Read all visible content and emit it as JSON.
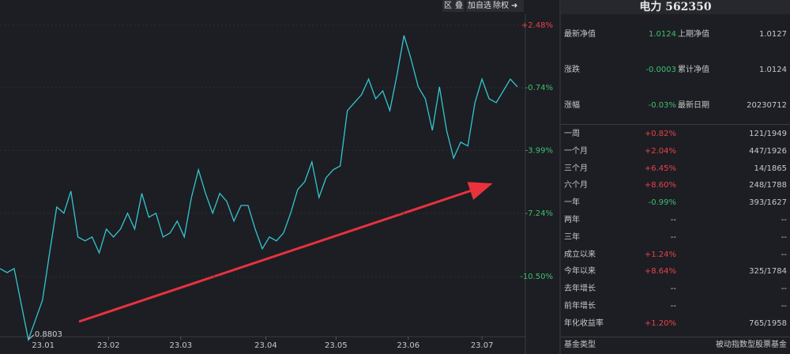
{
  "toolbar": [
    "区",
    "叠",
    "加自选",
    "除权"
  ],
  "chart_data": {
    "type": "line",
    "series": [
      {
        "color": "#35c6d0",
        "values": [
          -10.09,
          -10.3,
          -10.09,
          -11.93,
          -13.76,
          -12.74,
          -11.72,
          -9.28,
          -6.91,
          -7.23,
          -6.09,
          -8.46,
          -8.66,
          -8.46,
          -9.28,
          -8.05,
          -8.46,
          -8.05,
          -7.23,
          -8.05,
          -6.21,
          -7.44,
          -7.23,
          -8.46,
          -8.25,
          -7.64,
          -8.46,
          -6.42,
          -4.99,
          -6.21,
          -7.23,
          -6.21,
          -6.62,
          -7.64,
          -6.83,
          -6.83,
          -8.05,
          -9.07,
          -8.46,
          -8.66,
          -8.25,
          -7.23,
          -6.01,
          -5.6,
          -4.58,
          -6.42,
          -5.4,
          -4.99,
          -4.79,
          -1.93,
          -1.52,
          -1.11,
          -0.3,
          -1.32,
          -0.91,
          -1.93,
          -0.09,
          1.95,
          0.72,
          -0.7,
          -1.32,
          -2.95,
          -0.7,
          -2.95,
          -4.38,
          -3.56,
          -3.76,
          -1.52,
          -0.3,
          -1.32,
          -1.52,
          -0.91,
          -0.3,
          -0.7
        ]
      }
    ],
    "annotation": "0.8803",
    "xlim": [
      0,
      73
    ],
    "xticks": [
      {
        "value": 6.1,
        "label": "23.01"
      },
      {
        "value": 15.3,
        "label": "23.02"
      },
      {
        "value": 25.5,
        "label": "23.03"
      },
      {
        "value": 37.5,
        "label": "23.04"
      },
      {
        "value": 47.4,
        "label": "23.05"
      },
      {
        "value": 57.6,
        "label": "23.06"
      },
      {
        "value": 68,
        "label": "23.07"
      }
    ],
    "ylim": [
      -13.77,
      3.05
    ],
    "yticks": [
      {
        "value": 2.48,
        "label": "+2.48%"
      },
      {
        "value": -0.74,
        "label": "-0.74%"
      },
      {
        "value": -3.99,
        "label": "-3.99%"
      },
      {
        "value": -7.24,
        "label": "-7.24%"
      },
      {
        "value": -10.5,
        "label": "-10.50%"
      }
    ],
    "grid": true
  },
  "panel": {
    "title": "电力 562350",
    "value_color": "#3fbf6f",
    "summary": [
      [
        "最新净值",
        "1.0124",
        "上期净值",
        "1.0127"
      ],
      [
        "涨跌",
        "-0.0003",
        "累计净值",
        "1.0124"
      ],
      [
        "涨幅",
        "-0.03%",
        "最新日期",
        "20230712"
      ]
    ],
    "performance": [
      [
        "一周",
        "+0.82%",
        "121/1949"
      ],
      [
        "一个月",
        "+2.04%",
        "447/1926"
      ],
      [
        "三个月",
        "+6.45%",
        "14/1865"
      ],
      [
        "六个月",
        "+8.60%",
        "248/1788"
      ],
      [
        "一年",
        "-0.99%",
        "393/1627"
      ],
      [
        "两年",
        "--",
        "--"
      ],
      [
        "三年",
        "--",
        "--"
      ],
      [
        "成立以来",
        "+1.24%",
        "--"
      ],
      [
        "今年以来",
        "+8.64%",
        "325/1784"
      ],
      [
        "去年增长",
        "--",
        "--"
      ],
      [
        "前年增长",
        "--",
        "--"
      ],
      [
        "年化收益率",
        "+1.20%",
        "765/1958"
      ]
    ],
    "fund_type": [
      "基金类型",
      "被动指数型股票基金"
    ]
  }
}
